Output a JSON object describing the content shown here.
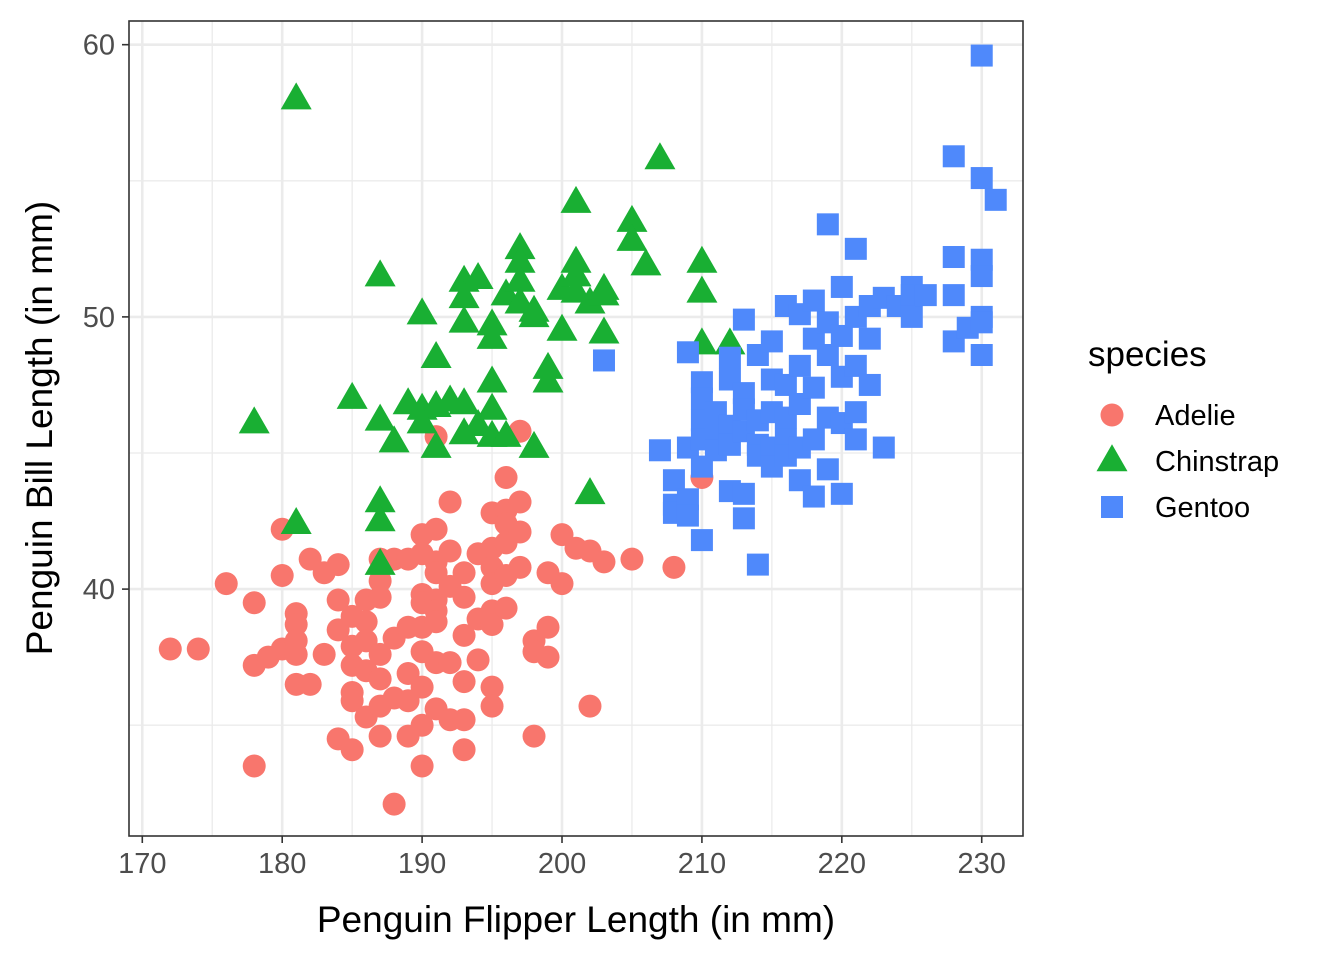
{
  "chart_data": {
    "type": "scatter",
    "title": "",
    "xlabel": "Penguin Flipper Length (in mm)",
    "ylabel": "Penguin Bill Length (in mm)",
    "xlim": [
      169.05,
      232.95
    ],
    "ylim": [
      30.93,
      60.87
    ],
    "xticks": [
      170,
      180,
      190,
      200,
      210,
      220,
      230
    ],
    "yticks": [
      40,
      50,
      60
    ],
    "grid": true,
    "legend": {
      "title": "species",
      "position": "right"
    },
    "series": [
      {
        "name": "Adelie",
        "color": "#F8766D",
        "shape": "circle",
        "points": [
          [
            172,
            37.8
          ],
          [
            174,
            37.8
          ],
          [
            176,
            40.2
          ],
          [
            178,
            39.5
          ],
          [
            178,
            37.2
          ],
          [
            178,
            33.5
          ],
          [
            179,
            37.5
          ],
          [
            180,
            42.2
          ],
          [
            180,
            40.5
          ],
          [
            180,
            37.8
          ],
          [
            181,
            39.1
          ],
          [
            181,
            38.7
          ],
          [
            181,
            38.1
          ],
          [
            181,
            37.6
          ],
          [
            181,
            36.5
          ],
          [
            182,
            41.1
          ],
          [
            182,
            36.5
          ],
          [
            183,
            40.6
          ],
          [
            183,
            37.6
          ],
          [
            184,
            40.9
          ],
          [
            184,
            39.6
          ],
          [
            184,
            38.5
          ],
          [
            184,
            34.5
          ],
          [
            185,
            37.9
          ],
          [
            185,
            37.2
          ],
          [
            185,
            36.2
          ],
          [
            185,
            35.9
          ],
          [
            185,
            34.1
          ],
          [
            185,
            39.0
          ],
          [
            186,
            39.6
          ],
          [
            186,
            38.8
          ],
          [
            186,
            37.0
          ],
          [
            186,
            35.3
          ],
          [
            186,
            38.1
          ],
          [
            187,
            41.1
          ],
          [
            187,
            40.3
          ],
          [
            187,
            39.7
          ],
          [
            187,
            37.6
          ],
          [
            187,
            36.7
          ],
          [
            187,
            35.7
          ],
          [
            187,
            34.6
          ],
          [
            188,
            41.1
          ],
          [
            188,
            38.2
          ],
          [
            188,
            36.0
          ],
          [
            188,
            32.1
          ],
          [
            189,
            41.1
          ],
          [
            189,
            38.6
          ],
          [
            189,
            36.9
          ],
          [
            189,
            35.9
          ],
          [
            189,
            34.6
          ],
          [
            190,
            42.0
          ],
          [
            190,
            41.3
          ],
          [
            190,
            39.8
          ],
          [
            190,
            39.5
          ],
          [
            190,
            38.6
          ],
          [
            190,
            37.7
          ],
          [
            190,
            36.4
          ],
          [
            190,
            35.0
          ],
          [
            190,
            33.5
          ],
          [
            191,
            42.2
          ],
          [
            191,
            41.0
          ],
          [
            191,
            40.6
          ],
          [
            191,
            39.6
          ],
          [
            191,
            39.2
          ],
          [
            191,
            38.8
          ],
          [
            191,
            37.3
          ],
          [
            191,
            35.6
          ],
          [
            191,
            45.6
          ],
          [
            192,
            43.2
          ],
          [
            192,
            41.4
          ],
          [
            192,
            40.1
          ],
          [
            192,
            37.3
          ],
          [
            192,
            35.2
          ],
          [
            193,
            40.6
          ],
          [
            193,
            39.7
          ],
          [
            193,
            38.3
          ],
          [
            193,
            36.6
          ],
          [
            193,
            35.2
          ],
          [
            193,
            34.1
          ],
          [
            194,
            41.3
          ],
          [
            194,
            38.9
          ],
          [
            194,
            37.4
          ],
          [
            195,
            42.8
          ],
          [
            195,
            41.5
          ],
          [
            195,
            40.8
          ],
          [
            195,
            40.2
          ],
          [
            195,
            39.2
          ],
          [
            195,
            38.7
          ],
          [
            195,
            36.4
          ],
          [
            195,
            35.7
          ],
          [
            196,
            44.1
          ],
          [
            196,
            42.9
          ],
          [
            196,
            41.7
          ],
          [
            196,
            40.5
          ],
          [
            196,
            39.3
          ],
          [
            196,
            42.4
          ],
          [
            197,
            43.2
          ],
          [
            197,
            42.1
          ],
          [
            197,
            40.8
          ],
          [
            197,
            45.8
          ],
          [
            198,
            38.1
          ],
          [
            198,
            37.7
          ],
          [
            198,
            34.6
          ],
          [
            199,
            40.6
          ],
          [
            199,
            38.6
          ],
          [
            199,
            37.5
          ],
          [
            200,
            42.0
          ],
          [
            200,
            40.2
          ],
          [
            201,
            41.5
          ],
          [
            202,
            41.4
          ],
          [
            202,
            35.7
          ],
          [
            203,
            41.0
          ],
          [
            205,
            41.1
          ],
          [
            208,
            40.8
          ],
          [
            210,
            44.1
          ]
        ]
      },
      {
        "name": "Chinstrap",
        "color": "#19AF33",
        "shape": "triangle",
        "points": [
          [
            178,
            46.1
          ],
          [
            181,
            58.0
          ],
          [
            181,
            42.4
          ],
          [
            185,
            47.0
          ],
          [
            187,
            51.5
          ],
          [
            187,
            46.2
          ],
          [
            187,
            43.2
          ],
          [
            187,
            42.5
          ],
          [
            187,
            40.9
          ],
          [
            188,
            45.4
          ],
          [
            189,
            46.8
          ],
          [
            190,
            50.1
          ],
          [
            190,
            46.6
          ],
          [
            190,
            46.1
          ],
          [
            191,
            48.5
          ],
          [
            191,
            46.7
          ],
          [
            191,
            45.2
          ],
          [
            192,
            46.9
          ],
          [
            193,
            51.3
          ],
          [
            193,
            50.7
          ],
          [
            193,
            49.8
          ],
          [
            193,
            46.8
          ],
          [
            193,
            45.7
          ],
          [
            194,
            51.4
          ],
          [
            194,
            46.0
          ],
          [
            195,
            49.7
          ],
          [
            195,
            49.2
          ],
          [
            195,
            47.6
          ],
          [
            195,
            46.6
          ],
          [
            195,
            45.6
          ],
          [
            196,
            50.8
          ],
          [
            196,
            45.6
          ],
          [
            197,
            52.5
          ],
          [
            197,
            52.0
          ],
          [
            197,
            51.3
          ],
          [
            197,
            50.5
          ],
          [
            198,
            50.2
          ],
          [
            198,
            50.0
          ],
          [
            198,
            45.2
          ],
          [
            199,
            48.1
          ],
          [
            199,
            47.6
          ],
          [
            200,
            51.0
          ],
          [
            200,
            49.5
          ],
          [
            201,
            54.2
          ],
          [
            201,
            52.0
          ],
          [
            201,
            51.5
          ],
          [
            201,
            50.9
          ],
          [
            202,
            50.5
          ],
          [
            202,
            43.5
          ],
          [
            203,
            51.0
          ],
          [
            203,
            50.8
          ],
          [
            203,
            49.4
          ],
          [
            205,
            53.5
          ],
          [
            205,
            52.8
          ],
          [
            206,
            51.9
          ],
          [
            207,
            55.8
          ],
          [
            210,
            52.0
          ],
          [
            210,
            50.9
          ],
          [
            210,
            49.0
          ],
          [
            212,
            49.0
          ]
        ]
      },
      {
        "name": "Gentoo",
        "color": "#4F89FB",
        "shape": "square",
        "points": [
          [
            203,
            48.4
          ],
          [
            207,
            45.1
          ],
          [
            208,
            44.0
          ],
          [
            208,
            43.1
          ],
          [
            208,
            42.8
          ],
          [
            209,
            48.7
          ],
          [
            209,
            45.2
          ],
          [
            209,
            43.3
          ],
          [
            209,
            42.7
          ],
          [
            210,
            47.6
          ],
          [
            210,
            47.0
          ],
          [
            210,
            46.2
          ],
          [
            210,
            45.5
          ],
          [
            210,
            44.5
          ],
          [
            210,
            41.8
          ],
          [
            211,
            46.5
          ],
          [
            211,
            45.8
          ],
          [
            211,
            45.1
          ],
          [
            212,
            48.5
          ],
          [
            212,
            47.7
          ],
          [
            212,
            46.0
          ],
          [
            212,
            45.3
          ],
          [
            212,
            43.6
          ],
          [
            213,
            49.9
          ],
          [
            213,
            47.2
          ],
          [
            213,
            46.6
          ],
          [
            213,
            45.8
          ],
          [
            213,
            43.5
          ],
          [
            213,
            42.6
          ],
          [
            214,
            48.6
          ],
          [
            214,
            46.2
          ],
          [
            214,
            45.3
          ],
          [
            214,
            44.9
          ],
          [
            214,
            40.9
          ],
          [
            215,
            49.1
          ],
          [
            215,
            47.7
          ],
          [
            215,
            46.5
          ],
          [
            215,
            45.2
          ],
          [
            215,
            44.5
          ],
          [
            216,
            50.4
          ],
          [
            216,
            47.5
          ],
          [
            216,
            46.3
          ],
          [
            216,
            45.5
          ],
          [
            216,
            44.9
          ],
          [
            217,
            50.1
          ],
          [
            217,
            48.2
          ],
          [
            217,
            46.8
          ],
          [
            217,
            45.2
          ],
          [
            217,
            44.0
          ],
          [
            218,
            50.6
          ],
          [
            218,
            49.2
          ],
          [
            218,
            47.4
          ],
          [
            218,
            45.5
          ],
          [
            218,
            43.4
          ],
          [
            219,
            53.4
          ],
          [
            219,
            49.8
          ],
          [
            219,
            48.6
          ],
          [
            219,
            46.3
          ],
          [
            219,
            44.4
          ],
          [
            220,
            51.1
          ],
          [
            220,
            49.3
          ],
          [
            220,
            47.8
          ],
          [
            220,
            46.1
          ],
          [
            220,
            43.5
          ],
          [
            221,
            52.5
          ],
          [
            221,
            50.0
          ],
          [
            221,
            48.2
          ],
          [
            221,
            46.5
          ],
          [
            221,
            45.5
          ],
          [
            222,
            50.4
          ],
          [
            222,
            49.2
          ],
          [
            222,
            47.5
          ],
          [
            223,
            50.7
          ],
          [
            223,
            45.2
          ],
          [
            224,
            50.4
          ],
          [
            225,
            51.1
          ],
          [
            225,
            50.8
          ],
          [
            225,
            50.0
          ],
          [
            226,
            50.8
          ],
          [
            228,
            55.9
          ],
          [
            228,
            52.2
          ],
          [
            228,
            50.8
          ],
          [
            228,
            49.1
          ],
          [
            229,
            49.6
          ],
          [
            230,
            59.6
          ],
          [
            230,
            55.1
          ],
          [
            230,
            52.1
          ],
          [
            230,
            51.5
          ],
          [
            230,
            50.0
          ],
          [
            230,
            49.8
          ],
          [
            230,
            48.6
          ],
          [
            231,
            54.3
          ]
        ]
      }
    ]
  }
}
